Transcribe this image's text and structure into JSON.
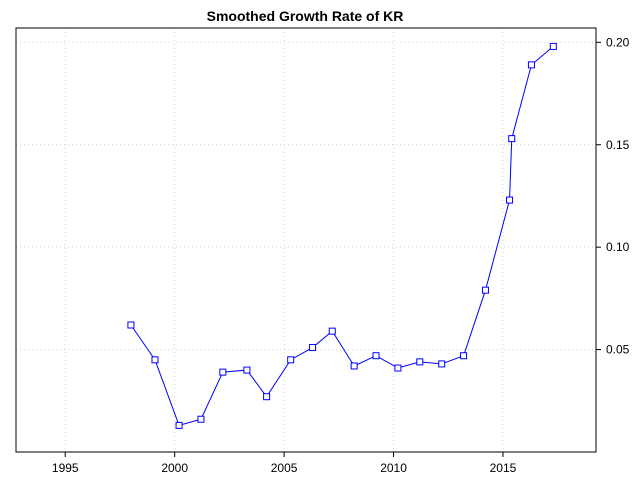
{
  "chart_data": {
    "type": "line",
    "title": "Smoothed Growth Rate of KR",
    "xlabel": "",
    "ylabel": "",
    "xlim": [
      1992.75,
      2019.25
    ],
    "ylim": [
      0.0,
      0.207
    ],
    "x_ticks": [
      1995,
      2000,
      2005,
      2010,
      2015
    ],
    "y_ticks": [
      0.05,
      0.1,
      0.15,
      0.2
    ],
    "y_tick_labels": [
      "0.05",
      "0.10",
      "0.15",
      "0.20"
    ],
    "y_axis_side": "right",
    "grid": true,
    "legend": "none",
    "colors": {
      "series": "#0000ff",
      "grid": "#d3d3d3",
      "frame": "#000000"
    },
    "marker": "open-square",
    "series": [
      {
        "x": [
          1998.0,
          1999.1,
          2000.2,
          2001.2,
          2002.2,
          2003.3,
          2004.2,
          2005.3,
          2006.3,
          2007.2,
          2008.2,
          2009.2,
          2010.2,
          2011.2,
          2012.2,
          2013.2,
          2014.2,
          2015.3,
          2015.4,
          2016.3,
          2017.3
        ],
        "y": [
          0.062,
          0.045,
          0.013,
          0.016,
          0.039,
          0.04,
          0.027,
          0.045,
          0.051,
          0.059,
          0.042,
          0.047,
          0.041,
          0.044,
          0.043,
          0.047,
          0.079,
          0.123,
          0.153,
          0.189,
          0.198
        ]
      }
    ]
  }
}
